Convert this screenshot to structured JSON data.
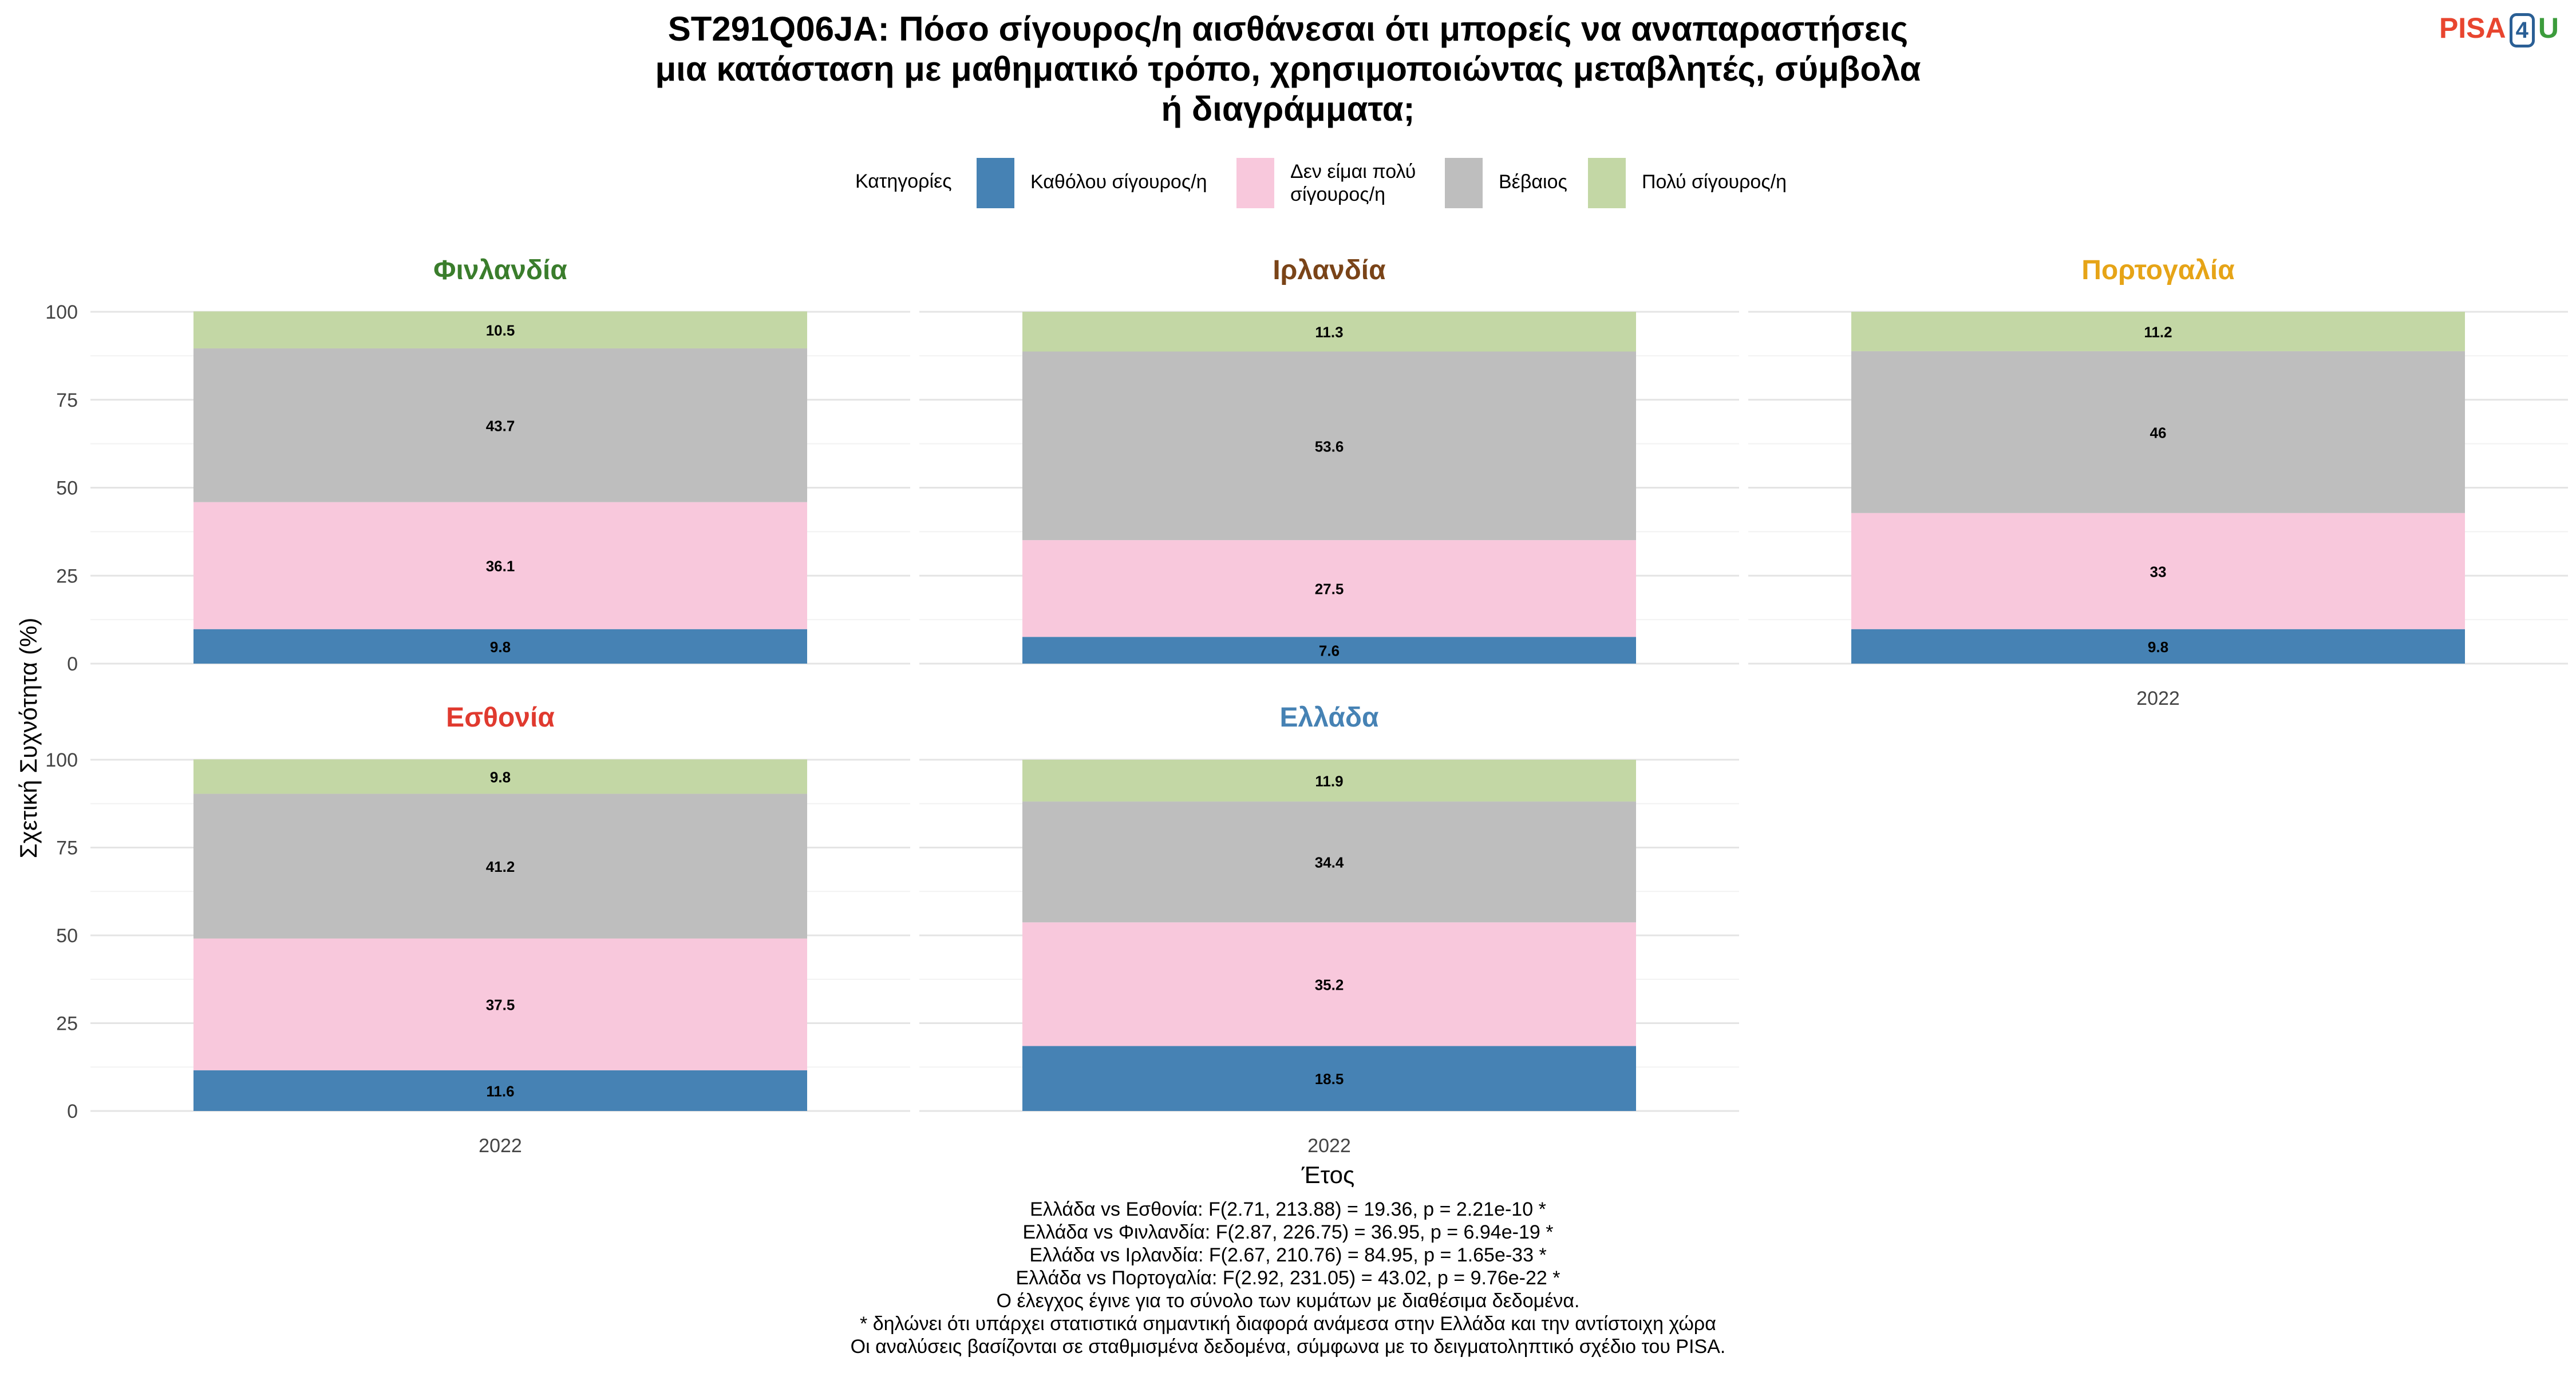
{
  "title_lines": [
    "ST291Q06JA: Πόσο σίγουρος/η αισθάνεσαι ότι μπορείς να αναπαραστήσεις",
    "μια κατάσταση με μαθηματικό τρόπο, χρησιμοποιώντας μεταβλητές, σύμβολα",
    "ή διαγράμματα;"
  ],
  "logo": {
    "part1": "PISA",
    "part2": "4",
    "part3": "U"
  },
  "legend": {
    "title": "Κατηγορίες",
    "items": [
      {
        "lines": [
          "Καθόλου σίγουρος/η"
        ],
        "color": "#4682b4"
      },
      {
        "lines": [
          "Δεν είμαι πολύ",
          "σίγουρος/η"
        ],
        "color": "#f8c8dc"
      },
      {
        "lines": [
          "Βέβαιος"
        ],
        "color": "#bebebe"
      },
      {
        "lines": [
          "Πολύ σίγουρος/η"
        ],
        "color": "#c3d7a5"
      }
    ]
  },
  "chart_data": {
    "type": "bar",
    "stacked": true,
    "xlabel": "Έτος",
    "ylabel": "Σχετική Συχνότητα (%)",
    "ylim": [
      0,
      100
    ],
    "yticks": [
      0,
      25,
      50,
      75,
      100
    ],
    "categories": [
      "2022"
    ],
    "series_names": [
      "Καθόλου σίγουρος/η",
      "Δεν είμαι πολύ σίγουρος/η",
      "Βέβαιος",
      "Πολύ σίγουρος/η"
    ],
    "facets": [
      {
        "name": "Φινλανδία",
        "color": "#3a7d2c",
        "values": [
          9.8,
          36.1,
          43.7,
          10.5
        ],
        "labels": [
          "9.8",
          "36.1",
          "43.7",
          "10.5"
        ]
      },
      {
        "name": "Ιρλανδία",
        "color": "#7a4418",
        "values": [
          7.6,
          27.5,
          53.6,
          11.3
        ],
        "labels": [
          "7.6",
          "27.5",
          "53.6",
          "11.3"
        ]
      },
      {
        "name": "Πορτογαλία",
        "color": "#e6a417",
        "values": [
          9.8,
          33,
          46,
          11.2
        ],
        "labels": [
          "9.8",
          "33",
          "46",
          "11.2"
        ]
      },
      {
        "name": "Εσθονία",
        "color": "#e03a2f",
        "values": [
          11.6,
          37.5,
          41.2,
          9.8
        ],
        "labels": [
          "11.6",
          "37.5",
          "41.2",
          "9.8"
        ]
      },
      {
        "name": "Ελλάδα",
        "color": "#4682b4",
        "values": [
          18.5,
          35.2,
          34.4,
          11.9
        ],
        "labels": [
          "18.5",
          "35.2",
          "34.4",
          "11.9"
        ]
      }
    ],
    "grid": true
  },
  "footnotes": [
    "Ελλάδα vs Εσθονία: F(2.71, 213.88) = 19.36, p = 2.21e-10 *",
    "Ελλάδα vs Φινλανδία: F(2.87, 226.75) = 36.95, p = 6.94e-19 *",
    "Ελλάδα vs Ιρλανδία: F(2.67, 210.76) = 84.95, p = 1.65e-33 *",
    "Ελλάδα vs Πορτογαλία: F(2.92, 231.05) = 43.02, p = 9.76e-22 *",
    "Ο έλεγχος έγινε για το σύνολο των κυμάτων με διαθέσιμα δεδομένα.",
    "* δηλώνει ότι υπάρχει στατιστικά σημαντική διαφορά ανάμεσα στην Ελλάδα και την αντίστοιχη χώρα",
    "Οι αναλύσεις βασίζονται σε σταθμισμένα δεδομένα, σύμφωνα με το δειγματοληπτικό σχέδιο του PISA."
  ]
}
